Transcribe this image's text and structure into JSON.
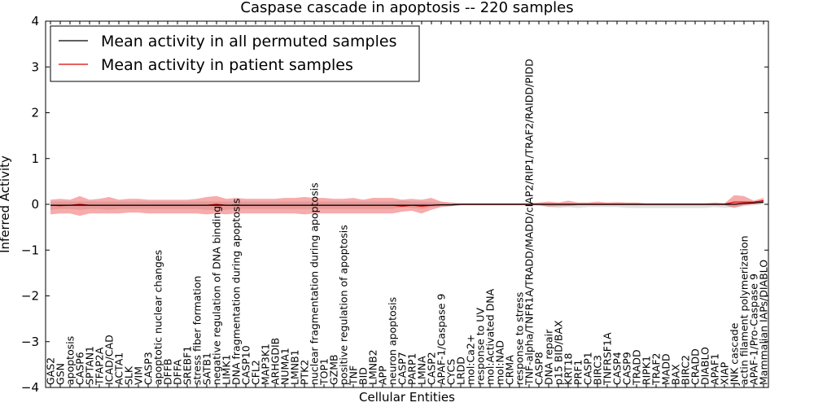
{
  "chart_data": {
    "type": "line",
    "title": "Caspase cascade in apoptosis -- 220 samples",
    "xlabel": "Cellular Entities",
    "ylabel": "Inferred Activity",
    "ylim": [
      -4,
      4
    ],
    "yticks": [
      -4,
      -3,
      -2,
      -1,
      0,
      1,
      2,
      3,
      4
    ],
    "legend_position": "top-left",
    "categories": [
      "GAS2",
      "GSN",
      "apoptosis",
      "CASP6",
      "SPTAN1",
      "TFAP2A",
      "ICAD/CAD",
      "ACTA1",
      "SLK",
      "VIM",
      "CASP3",
      "apoptotic nuclear changes",
      "DFFB",
      "DFFA",
      "SREBF1",
      "stress fiber formation",
      "SATB1",
      "negative regulation of DNA binding",
      "LIMK1",
      "DNA fragmentation during apoptosis",
      "CASP10",
      "CFL2",
      "MAP3K1",
      "ARHGDIB",
      "NUMA1",
      "LMNB1",
      "PTK2",
      "nuclear fragmentation during apoptosis",
      "TOP1",
      "GZMB",
      "positive regulation of apoptosis",
      "TNF",
      "BID",
      "LMNB2",
      "APP",
      "neuron apoptosis",
      "CASP7",
      "PARP1",
      "LMNA",
      "CASP2",
      "APAF-1/Caspase 9",
      "CYCS",
      "LRDD",
      "mol:Ca2+",
      "response to UV",
      "mol:Activated DNA",
      "mol:NAD",
      "CRMA",
      "response to stress",
      "TNF-alpha/TNFR1A/TRADD/MADD/cIAP2/RIP1/TRAF2/RAIDD/PIDD",
      "CASP8",
      "DNA repair",
      "p15 BID/BAX",
      "KRT18",
      "PRF1",
      "CASP1",
      "BIRC3",
      "TNFRSF1A",
      "CASP4",
      "CASP9",
      "TRADD",
      "RIPK1",
      "TRAF2",
      "MADD",
      "BAX",
      "BIRC2",
      "CRADD",
      "DIABLO",
      "APAF1",
      "XIAP",
      "JNK cascade",
      "actin filament polymerization",
      "APAF-1/Pro-Caspase 9",
      "Mammalian IAPs/DIABLO"
    ],
    "series": [
      {
        "name": "Mean activity in all permuted samples",
        "color": "#000000",
        "values": [
          -0.02,
          -0.02,
          -0.02,
          -0.02,
          -0.02,
          -0.02,
          -0.02,
          -0.02,
          -0.02,
          -0.02,
          -0.02,
          -0.02,
          -0.02,
          -0.02,
          -0.02,
          -0.02,
          -0.02,
          -0.02,
          -0.02,
          -0.02,
          -0.02,
          -0.02,
          -0.02,
          -0.02,
          -0.02,
          -0.02,
          -0.02,
          -0.02,
          -0.02,
          -0.02,
          -0.02,
          -0.02,
          -0.02,
          -0.02,
          -0.02,
          -0.02,
          -0.02,
          -0.02,
          -0.02,
          -0.02,
          -0.01,
          -0.01,
          0,
          0,
          0,
          0,
          0,
          0,
          0,
          0,
          0,
          0,
          0,
          0,
          0,
          0,
          0,
          0,
          0,
          0,
          0,
          0,
          0,
          0,
          0,
          0,
          0,
          0,
          0,
          0,
          0,
          0.02,
          0.03,
          0.05
        ],
        "band_low": [
          -0.12,
          -0.1,
          -0.1,
          -0.12,
          -0.1,
          -0.1,
          -0.12,
          -0.1,
          -0.1,
          -0.1,
          -0.1,
          -0.1,
          -0.1,
          -0.1,
          -0.1,
          -0.1,
          -0.12,
          -0.12,
          -0.12,
          -0.1,
          -0.1,
          -0.1,
          -0.1,
          -0.1,
          -0.1,
          -0.1,
          -0.1,
          -0.1,
          -0.1,
          -0.1,
          -0.1,
          -0.1,
          -0.1,
          -0.1,
          -0.1,
          -0.1,
          -0.06,
          -0.08,
          -0.1,
          -0.06,
          -0.04,
          -0.04,
          -0.02,
          -0.02,
          -0.02,
          -0.02,
          -0.02,
          -0.02,
          -0.02,
          -0.02,
          -0.03,
          -0.06,
          -0.08,
          -0.06,
          -0.08,
          -0.06,
          -0.06,
          -0.06,
          -0.06,
          -0.08,
          -0.08,
          -0.08,
          -0.08,
          -0.08,
          -0.08,
          -0.08,
          -0.08,
          -0.08,
          -0.06,
          -0.08,
          -0.06,
          -0.04,
          -0.02,
          0.0
        ],
        "band_high": [
          0.06,
          0.06,
          0.06,
          0.06,
          0.06,
          0.06,
          0.06,
          0.06,
          0.06,
          0.06,
          0.06,
          0.06,
          0.06,
          0.06,
          0.06,
          0.06,
          0.06,
          0.06,
          0.06,
          0.06,
          0.06,
          0.06,
          0.06,
          0.06,
          0.06,
          0.06,
          0.06,
          0.06,
          0.06,
          0.06,
          0.06,
          0.06,
          0.06,
          0.06,
          0.06,
          0.06,
          0.08,
          0.06,
          0.06,
          0.05,
          0.04,
          0.03,
          0.02,
          0.02,
          0.02,
          0.02,
          0.02,
          0.02,
          0.02,
          0.02,
          0.02,
          0.02,
          0.02,
          0.02,
          0.02,
          0.02,
          0.02,
          0.02,
          0.02,
          0.02,
          0.02,
          0.02,
          0.02,
          0.02,
          0.02,
          0.02,
          0.02,
          0.02,
          0.02,
          0.03,
          0.04,
          0.05,
          0.06,
          0.08
        ]
      },
      {
        "name": "Mean activity in patient samples",
        "color": "#dd0000",
        "values": [
          -0.02,
          -0.03,
          -0.02,
          0.0,
          -0.02,
          -0.02,
          -0.02,
          -0.02,
          -0.02,
          -0.02,
          -0.02,
          -0.02,
          -0.02,
          -0.02,
          -0.02,
          -0.02,
          -0.02,
          0.0,
          -0.02,
          -0.02,
          -0.02,
          -0.02,
          -0.02,
          -0.02,
          -0.02,
          -0.02,
          -0.02,
          -0.02,
          -0.02,
          -0.02,
          -0.02,
          -0.02,
          -0.02,
          -0.02,
          -0.02,
          -0.02,
          -0.04,
          -0.02,
          -0.04,
          -0.02,
          -0.01,
          -0.01,
          0.0,
          0.0,
          0.0,
          0.0,
          0.0,
          0.0,
          0.0,
          0.0,
          0.0,
          0.0,
          0.0,
          0.0,
          0.0,
          0.0,
          0.0,
          0.0,
          0.0,
          0.0,
          0.0,
          0.0,
          0.0,
          0.0,
          0.0,
          0.0,
          0.0,
          0.0,
          0.0,
          0.0,
          0.05,
          0.05,
          0.05,
          0.08
        ],
        "band_low": [
          -0.22,
          -0.2,
          -0.2,
          -0.25,
          -0.2,
          -0.2,
          -0.2,
          -0.2,
          -0.18,
          -0.18,
          -0.2,
          -0.2,
          -0.2,
          -0.2,
          -0.2,
          -0.2,
          -0.22,
          -0.2,
          -0.22,
          -0.2,
          -0.2,
          -0.2,
          -0.2,
          -0.2,
          -0.2,
          -0.2,
          -0.22,
          -0.2,
          -0.2,
          -0.2,
          -0.2,
          -0.2,
          -0.2,
          -0.2,
          -0.2,
          -0.2,
          -0.16,
          -0.14,
          -0.2,
          -0.12,
          -0.06,
          -0.04,
          -0.02,
          -0.02,
          -0.02,
          -0.02,
          -0.02,
          -0.02,
          -0.02,
          -0.02,
          -0.02,
          -0.05,
          -0.04,
          -0.04,
          -0.02,
          -0.02,
          -0.02,
          -0.02,
          -0.02,
          -0.02,
          -0.02,
          -0.02,
          -0.02,
          -0.02,
          -0.02,
          -0.02,
          -0.02,
          -0.02,
          -0.02,
          -0.02,
          -0.08,
          -0.02,
          0.0,
          0.02
        ],
        "band_high": [
          0.1,
          0.12,
          0.1,
          0.18,
          0.1,
          0.12,
          0.16,
          0.1,
          0.12,
          0.12,
          0.1,
          0.1,
          0.1,
          0.1,
          0.1,
          0.12,
          0.16,
          0.18,
          0.12,
          0.14,
          0.12,
          0.12,
          0.12,
          0.12,
          0.14,
          0.14,
          0.16,
          0.14,
          0.14,
          0.12,
          0.12,
          0.14,
          0.1,
          0.14,
          0.14,
          0.14,
          0.1,
          0.12,
          0.1,
          0.14,
          0.06,
          0.04,
          0.02,
          0.02,
          0.02,
          0.02,
          0.02,
          0.02,
          0.02,
          0.02,
          0.04,
          0.06,
          0.04,
          0.08,
          0.04,
          0.04,
          0.06,
          0.04,
          0.05,
          0.04,
          0.04,
          0.02,
          0.02,
          0.02,
          0.02,
          0.02,
          0.02,
          0.02,
          0.04,
          0.02,
          0.2,
          0.18,
          0.08,
          0.14
        ]
      }
    ]
  }
}
